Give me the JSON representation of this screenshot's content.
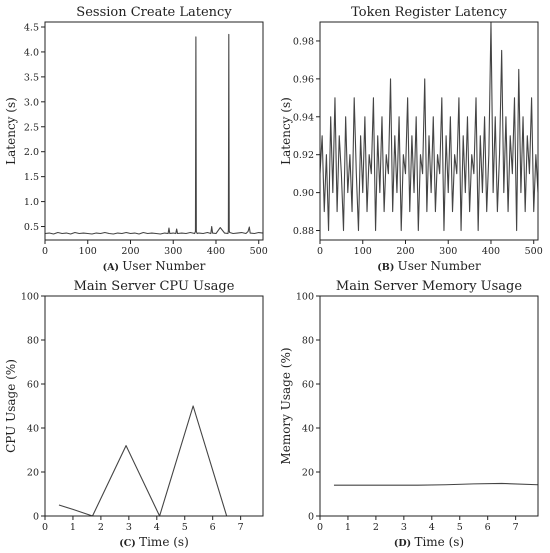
{
  "chart_data": [
    {
      "type": "line",
      "title": "Session Create Latency",
      "xlabel_letter": "(A)",
      "xlabel": "User Number",
      "ylabel": "Latency (s)",
      "xlim": [
        0,
        510
      ],
      "ylim": [
        0.23,
        4.6
      ],
      "xticks": [
        0,
        100,
        200,
        300,
        400,
        500
      ],
      "yticks": [
        0.5,
        1.0,
        1.5,
        2.0,
        2.5,
        3.0,
        3.5,
        4.0,
        4.5
      ],
      "ytick_labels": [
        "0.5",
        "1.0",
        "1.5",
        "2.0",
        "2.5",
        "3.0",
        "3.5",
        "4.0",
        "4.5"
      ],
      "color": "#444444",
      "series": [
        {
          "x": [
            0,
            10,
            20,
            30,
            40,
            50,
            60,
            70,
            80,
            90,
            100,
            110,
            120,
            130,
            140,
            150,
            160,
            170,
            180,
            190,
            200,
            210,
            220,
            230,
            240,
            250,
            260,
            270,
            280,
            288,
            290,
            292,
            300,
            306,
            308,
            310,
            320,
            330,
            340,
            350,
            352,
            353,
            354,
            356,
            360,
            370,
            380,
            388,
            390,
            392,
            400,
            410,
            420,
            428,
            429,
            430,
            431,
            432,
            440,
            450,
            460,
            470,
            475,
            478,
            480,
            490,
            500,
            510
          ],
          "y": [
            0.36,
            0.37,
            0.35,
            0.38,
            0.36,
            0.37,
            0.35,
            0.38,
            0.36,
            0.37,
            0.36,
            0.35,
            0.37,
            0.36,
            0.38,
            0.36,
            0.35,
            0.37,
            0.36,
            0.38,
            0.36,
            0.37,
            0.35,
            0.38,
            0.36,
            0.37,
            0.36,
            0.35,
            0.37,
            0.36,
            0.47,
            0.36,
            0.37,
            0.36,
            0.45,
            0.36,
            0.37,
            0.36,
            0.38,
            0.36,
            0.4,
            4.3,
            0.4,
            0.36,
            0.37,
            0.36,
            0.38,
            0.36,
            0.5,
            0.37,
            0.36,
            0.48,
            0.37,
            0.36,
            0.42,
            4.35,
            0.42,
            0.38,
            0.36,
            0.37,
            0.38,
            0.36,
            0.4,
            0.49,
            0.37,
            0.36,
            0.38,
            0.37
          ]
        }
      ]
    },
    {
      "type": "line",
      "title": "Token Register Latency",
      "xlabel_letter": "(B)",
      "xlabel": "User Number",
      "ylabel": "Latency (s)",
      "xlim": [
        0,
        510
      ],
      "ylim": [
        0.875,
        0.99
      ],
      "xticks": [
        0,
        100,
        200,
        300,
        400,
        500
      ],
      "yticks": [
        0.88,
        0.9,
        0.92,
        0.94,
        0.96,
        0.98
      ],
      "ytick_labels": [
        "0.88",
        "0.90",
        "0.92",
        "0.94",
        "0.96",
        "0.98"
      ],
      "color": "#444444",
      "series": [
        {
          "x": [
            0,
            5,
            10,
            15,
            20,
            25,
            30,
            35,
            40,
            45,
            50,
            55,
            60,
            65,
            70,
            75,
            80,
            85,
            90,
            95,
            100,
            105,
            110,
            115,
            120,
            125,
            130,
            135,
            140,
            145,
            150,
            155,
            160,
            165,
            170,
            175,
            180,
            185,
            190,
            195,
            200,
            205,
            210,
            215,
            220,
            225,
            230,
            235,
            240,
            245,
            250,
            255,
            260,
            265,
            270,
            275,
            280,
            285,
            290,
            295,
            300,
            305,
            310,
            315,
            320,
            325,
            330,
            335,
            340,
            345,
            350,
            355,
            360,
            365,
            370,
            375,
            380,
            385,
            390,
            395,
            400,
            405,
            410,
            415,
            420,
            425,
            430,
            435,
            440,
            445,
            450,
            455,
            460,
            465,
            470,
            475,
            480,
            485,
            490,
            495,
            500,
            505,
            510
          ],
          "y": [
            0.91,
            0.93,
            0.89,
            0.92,
            0.88,
            0.94,
            0.9,
            0.95,
            0.89,
            0.93,
            0.91,
            0.88,
            0.94,
            0.9,
            0.92,
            0.89,
            0.95,
            0.91,
            0.88,
            0.93,
            0.9,
            0.94,
            0.89,
            0.92,
            0.91,
            0.95,
            0.88,
            0.93,
            0.9,
            0.94,
            0.89,
            0.92,
            0.91,
            0.96,
            0.89,
            0.93,
            0.9,
            0.94,
            0.88,
            0.92,
            0.91,
            0.95,
            0.89,
            0.93,
            0.9,
            0.94,
            0.88,
            0.92,
            0.91,
            0.96,
            0.89,
            0.93,
            0.9,
            0.94,
            0.89,
            0.92,
            0.91,
            0.95,
            0.88,
            0.93,
            0.9,
            0.94,
            0.89,
            0.92,
            0.91,
            0.95,
            0.88,
            0.93,
            0.9,
            0.94,
            0.89,
            0.92,
            0.91,
            0.95,
            0.88,
            0.93,
            0.9,
            0.94,
            0.89,
            0.92,
            0.99,
            0.9,
            0.94,
            0.89,
            0.92,
            0.975,
            0.9,
            0.94,
            0.89,
            0.93,
            0.91,
            0.95,
            0.88,
            0.965,
            0.9,
            0.94,
            0.89,
            0.93,
            0.91,
            0.95,
            0.89,
            0.92,
            0.9
          ]
        }
      ]
    },
    {
      "type": "line",
      "title": "Main Server CPU Usage",
      "xlabel_letter": "(C)",
      "xlabel": "Time (s)",
      "ylabel": "CPU Usage (%)",
      "xlim": [
        0,
        7.8
      ],
      "ylim": [
        0,
        100
      ],
      "xticks": [
        0,
        1,
        2,
        3,
        4,
        5,
        6,
        7
      ],
      "yticks": [
        0,
        20,
        40,
        60,
        80,
        100
      ],
      "ytick_labels": [
        "0",
        "20",
        "40",
        "60",
        "80",
        "100"
      ],
      "color": "#444444",
      "series": [
        {
          "x": [
            0.5,
            1.0,
            1.7,
            2.9,
            4.1,
            5.3,
            6.5,
            7.0
          ],
          "y": [
            5,
            3,
            0,
            32,
            0,
            50,
            0,
            0
          ]
        }
      ]
    },
    {
      "type": "line",
      "title": "Main Server Memory Usage",
      "xlabel_letter": "(D)",
      "xlabel": "Time (s)",
      "ylabel": "Memory Usage (%)",
      "xlim": [
        0,
        7.8
      ],
      "ylim": [
        0,
        100
      ],
      "xticks": [
        0,
        1,
        2,
        3,
        4,
        5,
        6,
        7
      ],
      "yticks": [
        0,
        20,
        40,
        60,
        80,
        100
      ],
      "ytick_labels": [
        "0",
        "20",
        "40",
        "60",
        "80",
        "100"
      ],
      "color": "#444444",
      "series": [
        {
          "x": [
            0.5,
            1.5,
            2.5,
            3.5,
            4.5,
            5.5,
            6.5,
            7.8
          ],
          "y": [
            14,
            14,
            14,
            14,
            14.2,
            14.6,
            14.8,
            14.2
          ]
        }
      ]
    }
  ]
}
